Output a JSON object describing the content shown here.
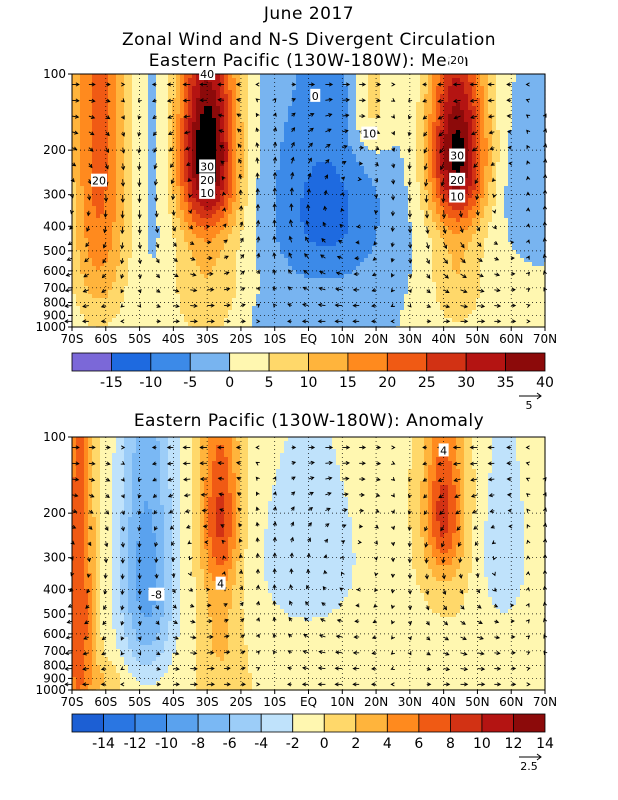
{
  "titles": {
    "line1": "June 2017",
    "line2": "Zonal Wind and N-S Divergent Circulation",
    "line3": "Eastern Pacific (130W-180W): Mean",
    "line4": "Eastern Pacific (130W-180W): Anomaly"
  },
  "colors": {
    "mean": [
      "#7b68d8",
      "#1e6ae0",
      "#3c8ae8",
      "#78b4f0",
      "#fff7b0",
      "#ffd86a",
      "#ffb43c",
      "#ff8a1e",
      "#f05a14",
      "#d23214",
      "#b41412",
      "#8c0a0a"
    ],
    "anom": [
      "#1c5fd4",
      "#2a76e2",
      "#3f8ce8",
      "#5aa2ee",
      "#7ab8f4",
      "#9ccdf8",
      "#bfe2fb",
      "#fff7b0",
      "#ffd86a",
      "#ffb43c",
      "#ff8a1e",
      "#f05a14",
      "#d23214",
      "#b41412",
      "#8c0a0a"
    ]
  },
  "chart_data": [
    {
      "type": "heatmap",
      "title": "Eastern Pacific (130W-180W): Mean",
      "x_ticks": [
        "70S",
        "60S",
        "50S",
        "40S",
        "30S",
        "20S",
        "10S",
        "EQ",
        "10N",
        "20N",
        "30N",
        "40N",
        "50N",
        "60N",
        "70N"
      ],
      "y_ticks": [
        "100",
        "200",
        "300",
        "400",
        "500",
        "600",
        "700",
        "800",
        "900",
        "1000"
      ],
      "y_scale": "log",
      "colorbar_labels": [
        "-15",
        "-10",
        "-5",
        "0",
        "5",
        "10",
        "15",
        "20",
        "25",
        "30",
        "35",
        "40"
      ],
      "contour_labels": [
        "40",
        "0",
        "20",
        "10",
        "30",
        "30",
        "20",
        "20",
        "20",
        "10",
        "10"
      ],
      "vector_reference": "5"
    },
    {
      "type": "heatmap",
      "title": "Eastern Pacific (130W-180W): Anomaly",
      "x_ticks": [
        "70S",
        "60S",
        "50S",
        "40S",
        "30S",
        "20S",
        "10S",
        "EQ",
        "10N",
        "20N",
        "30N",
        "40N",
        "50N",
        "60N",
        "70N"
      ],
      "y_ticks": [
        "100",
        "200",
        "300",
        "400",
        "500",
        "600",
        "700",
        "800",
        "900",
        "1000"
      ],
      "y_scale": "log",
      "colorbar_labels": [
        "-14",
        "-12",
        "-10",
        "-8",
        "-6",
        "-4",
        "-2",
        "0",
        "2",
        "4",
        "6",
        "8",
        "10",
        "12",
        "14"
      ],
      "contour_labels": [
        "4",
        "-8",
        "4"
      ],
      "vector_reference": "2.5"
    }
  ]
}
